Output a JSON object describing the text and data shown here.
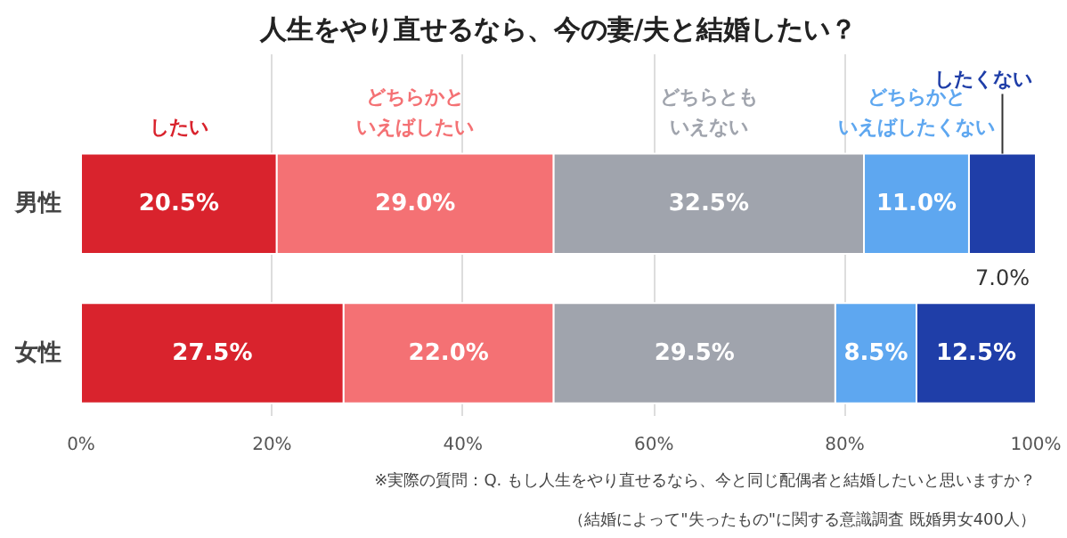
{
  "chart_data": {
    "type": "bar",
    "orientation": "horizontal",
    "stacked": true,
    "title": "人生をやり直せるなら、今の妻/夫と結婚したい？",
    "categories": [
      "男性",
      "女性"
    ],
    "series": [
      {
        "name": "したい",
        "color": "#d9232d",
        "values": [
          20.5,
          27.5
        ]
      },
      {
        "name": "どちらかといえばしたい",
        "color": "#f47174",
        "values": [
          29.0,
          22.0
        ]
      },
      {
        "name": "どちらともいえない",
        "color": "#a0a4ad",
        "values": [
          32.5,
          29.5
        ]
      },
      {
        "name": "どちらかといえばしたくない",
        "color": "#5ea7f0",
        "values": [
          11.0,
          8.5
        ]
      },
      {
        "name": "したくない",
        "color": "#1f3ea8",
        "values": [
          7.0,
          12.5
        ]
      }
    ],
    "value_labels": [
      [
        "20.5%",
        "27.5%"
      ],
      [
        "29.0%",
        "22.0%"
      ],
      [
        "32.5%",
        "29.5%"
      ],
      [
        "11.0%",
        "8.5%"
      ],
      [
        "7.0%",
        "12.5%"
      ]
    ],
    "xlim": [
      0,
      100
    ],
    "xticks": [
      {
        "value": 0,
        "label": "0%"
      },
      {
        "value": 20,
        "label": "20%"
      },
      {
        "value": 40,
        "label": "40%"
      },
      {
        "value": 60,
        "label": "60%"
      },
      {
        "value": 80,
        "label": "80%"
      },
      {
        "value": 100,
        "label": "100%"
      }
    ],
    "grid": "x",
    "legend": "top",
    "annotations": [
      "※実際の質問：Q. もし人生をやり直せるなら、今と同じ配偶者と結婚したいと思いますか？",
      "（結婚によって\"失ったもの\"に関する意識調査 既婚男女400人）"
    ]
  }
}
